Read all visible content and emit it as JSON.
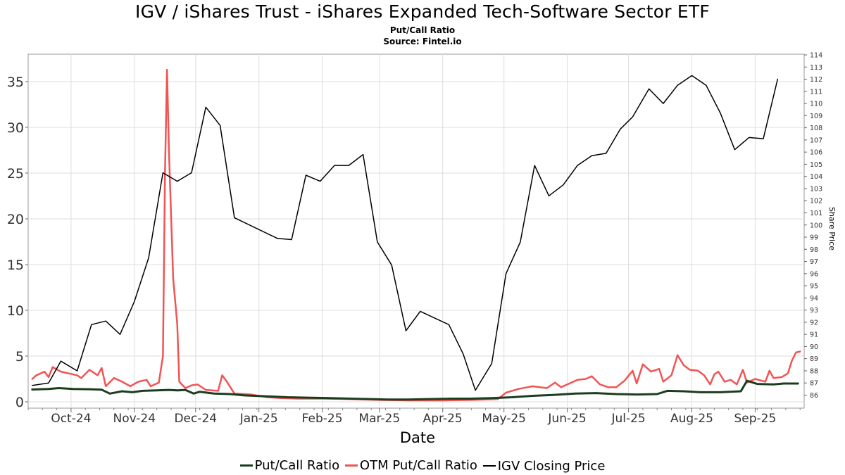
{
  "chart_data": {
    "type": "line",
    "title": "IGV / iShares Trust - iShares Expanded Tech-Software Sector ETF",
    "subtitle_lines": [
      "Put/Call Ratio",
      "Source: Fintel.io"
    ],
    "xlabel": "Date",
    "ylabel_left": "",
    "ylabel_right": "Share Price",
    "x_ticks": [
      "Oct-24",
      "Nov-24",
      "Dec-24",
      "Jan-25",
      "Feb-25",
      "Mar-25",
      "Apr-25",
      "May-25",
      "Jun-25",
      "Jul-25",
      "Aug-25",
      "Sep-25"
    ],
    "y_left_ticks": [
      "0",
      "5",
      "10",
      "15",
      "20",
      "25",
      "30",
      "35"
    ],
    "y_left_range": [
      0,
      38
    ],
    "y_right_ticks": [
      "86",
      "87",
      "88",
      "89",
      "90",
      "91",
      "92",
      "93",
      "94",
      "95",
      "96",
      "97",
      "98",
      "99",
      "100",
      "101",
      "102",
      "103",
      "104",
      "105",
      "106",
      "107",
      "108",
      "109",
      "110",
      "111",
      "112",
      "113",
      "114"
    ],
    "y_right_range": [
      85.4,
      114.1
    ],
    "x_range": [
      "2024-09-10",
      "2025-09-25"
    ],
    "grid": true,
    "legend_position": "bottom",
    "series": [
      {
        "name": "Put/Call Ratio",
        "axis": "left",
        "color": "#1b3d1f",
        "points": [
          [
            "2024-09-12",
            1.35
          ],
          [
            "2024-09-20",
            1.4
          ],
          [
            "2024-09-25",
            1.5
          ],
          [
            "2024-10-02",
            1.4
          ],
          [
            "2024-10-10",
            1.38
          ],
          [
            "2024-10-16",
            1.32
          ],
          [
            "2024-10-20",
            0.9
          ],
          [
            "2024-10-26",
            1.15
          ],
          [
            "2024-10-31",
            1.05
          ],
          [
            "2024-11-05",
            1.2
          ],
          [
            "2024-11-12",
            1.25
          ],
          [
            "2024-11-18",
            1.3
          ],
          [
            "2024-11-22",
            1.25
          ],
          [
            "2024-11-26",
            1.3
          ],
          [
            "2024-11-30",
            0.9
          ],
          [
            "2024-12-03",
            1.1
          ],
          [
            "2024-12-10",
            0.9
          ],
          [
            "2024-12-18",
            0.85
          ],
          [
            "2024-12-25",
            0.7
          ],
          [
            "2025-01-05",
            0.6
          ],
          [
            "2025-01-15",
            0.5
          ],
          [
            "2025-01-25",
            0.45
          ],
          [
            "2025-02-05",
            0.4
          ],
          [
            "2025-02-15",
            0.35
          ],
          [
            "2025-02-25",
            0.3
          ],
          [
            "2025-03-05",
            0.25
          ],
          [
            "2025-03-15",
            0.25
          ],
          [
            "2025-03-25",
            0.3
          ],
          [
            "2025-04-05",
            0.35
          ],
          [
            "2025-04-15",
            0.35
          ],
          [
            "2025-04-25",
            0.4
          ],
          [
            "2025-05-05",
            0.5
          ],
          [
            "2025-05-15",
            0.65
          ],
          [
            "2025-05-25",
            0.75
          ],
          [
            "2025-06-05",
            0.9
          ],
          [
            "2025-06-15",
            0.95
          ],
          [
            "2025-06-25",
            0.85
          ],
          [
            "2025-07-05",
            0.8
          ],
          [
            "2025-07-15",
            0.85
          ],
          [
            "2025-07-20",
            1.2
          ],
          [
            "2025-07-28",
            1.15
          ],
          [
            "2025-08-05",
            1.05
          ],
          [
            "2025-08-15",
            1.05
          ],
          [
            "2025-08-25",
            1.15
          ],
          [
            "2025-08-28",
            2.3
          ],
          [
            "2025-09-02",
            1.95
          ],
          [
            "2025-09-10",
            1.9
          ],
          [
            "2025-09-15",
            2.0
          ],
          [
            "2025-09-22",
            2.0
          ]
        ]
      },
      {
        "name": "OTM Put/Call Ratio",
        "axis": "left",
        "color": "#f25454",
        "points": [
          [
            "2024-09-12",
            2.5
          ],
          [
            "2024-09-14",
            2.9
          ],
          [
            "2024-09-18",
            3.3
          ],
          [
            "2024-09-20",
            2.7
          ],
          [
            "2024-09-22",
            3.8
          ],
          [
            "2024-09-26",
            3.3
          ],
          [
            "2024-09-30",
            3.1
          ],
          [
            "2024-10-04",
            2.9
          ],
          [
            "2024-10-06",
            2.6
          ],
          [
            "2024-10-10",
            3.5
          ],
          [
            "2024-10-14",
            2.9
          ],
          [
            "2024-10-16",
            3.7
          ],
          [
            "2024-10-18",
            1.7
          ],
          [
            "2024-10-22",
            2.6
          ],
          [
            "2024-10-26",
            2.2
          ],
          [
            "2024-10-30",
            1.7
          ],
          [
            "2024-11-03",
            2.2
          ],
          [
            "2024-11-07",
            2.4
          ],
          [
            "2024-11-09",
            1.7
          ],
          [
            "2024-11-13",
            2.1
          ],
          [
            "2024-11-15",
            5.0
          ],
          [
            "2024-11-16",
            25.0
          ],
          [
            "2024-11-17",
            36.3
          ],
          [
            "2024-11-18",
            27.0
          ],
          [
            "2024-11-20",
            13.5
          ],
          [
            "2024-11-22",
            8.5
          ],
          [
            "2024-11-23",
            2.2
          ],
          [
            "2024-11-26",
            1.5
          ],
          [
            "2024-11-29",
            1.8
          ],
          [
            "2024-12-02",
            1.9
          ],
          [
            "2024-12-06",
            1.3
          ],
          [
            "2024-12-12",
            1.2
          ],
          [
            "2024-12-14",
            2.9
          ],
          [
            "2024-12-16",
            2.3
          ],
          [
            "2024-12-20",
            0.9
          ],
          [
            "2024-12-28",
            0.8
          ],
          [
            "2025-01-05",
            0.5
          ],
          [
            "2025-01-12",
            0.4
          ],
          [
            "2025-01-20",
            0.35
          ],
          [
            "2025-02-01",
            0.35
          ],
          [
            "2025-02-15",
            0.3
          ],
          [
            "2025-03-01",
            0.2
          ],
          [
            "2025-03-15",
            0.15
          ],
          [
            "2025-04-01",
            0.15
          ],
          [
            "2025-04-15",
            0.2
          ],
          [
            "2025-04-28",
            0.3
          ],
          [
            "2025-05-02",
            1.0
          ],
          [
            "2025-05-08",
            1.4
          ],
          [
            "2025-05-15",
            1.7
          ],
          [
            "2025-05-22",
            1.5
          ],
          [
            "2025-05-26",
            2.1
          ],
          [
            "2025-05-29",
            1.6
          ],
          [
            "2025-06-02",
            2.0
          ],
          [
            "2025-06-06",
            2.4
          ],
          [
            "2025-06-10",
            2.5
          ],
          [
            "2025-06-13",
            2.8
          ],
          [
            "2025-06-17",
            1.9
          ],
          [
            "2025-06-21",
            1.6
          ],
          [
            "2025-06-25",
            1.6
          ],
          [
            "2025-06-29",
            2.3
          ],
          [
            "2025-07-03",
            3.4
          ],
          [
            "2025-07-05",
            2.0
          ],
          [
            "2025-07-08",
            4.1
          ],
          [
            "2025-07-12",
            3.3
          ],
          [
            "2025-07-16",
            3.6
          ],
          [
            "2025-07-18",
            2.2
          ],
          [
            "2025-07-22",
            2.9
          ],
          [
            "2025-07-25",
            5.1
          ],
          [
            "2025-07-28",
            4.0
          ],
          [
            "2025-07-31",
            3.5
          ],
          [
            "2025-08-04",
            3.4
          ],
          [
            "2025-08-07",
            2.9
          ],
          [
            "2025-08-10",
            1.9
          ],
          [
            "2025-08-12",
            3.0
          ],
          [
            "2025-08-14",
            3.3
          ],
          [
            "2025-08-17",
            2.2
          ],
          [
            "2025-08-20",
            2.4
          ],
          [
            "2025-08-23",
            1.9
          ],
          [
            "2025-08-26",
            3.5
          ],
          [
            "2025-08-28",
            2.1
          ],
          [
            "2025-09-01",
            2.5
          ],
          [
            "2025-09-06",
            2.2
          ],
          [
            "2025-09-08",
            3.4
          ],
          [
            "2025-09-10",
            2.6
          ],
          [
            "2025-09-14",
            2.7
          ],
          [
            "2025-09-17",
            3.1
          ],
          [
            "2025-09-19",
            4.5
          ],
          [
            "2025-09-21",
            5.4
          ],
          [
            "2025-09-23",
            5.5
          ]
        ]
      },
      {
        "name": "IGV Closing Price",
        "axis": "right",
        "color": "#000000",
        "points": [
          [
            "2024-09-12",
            86.8
          ],
          [
            "2024-09-20",
            87.0
          ],
          [
            "2024-09-26",
            88.8
          ],
          [
            "2024-10-04",
            88.0
          ],
          [
            "2024-10-11",
            91.8
          ],
          [
            "2024-10-18",
            92.1
          ],
          [
            "2024-10-25",
            91.0
          ],
          [
            "2024-11-01",
            93.7
          ],
          [
            "2024-11-08",
            97.3
          ],
          [
            "2024-11-15",
            104.3
          ],
          [
            "2024-11-22",
            103.6
          ],
          [
            "2024-11-29",
            104.3
          ],
          [
            "2024-12-06",
            109.7
          ],
          [
            "2024-12-13",
            108.2
          ],
          [
            "2024-12-20",
            100.6
          ],
          [
            "2025-01-10",
            98.9
          ],
          [
            "2025-01-17",
            98.8
          ],
          [
            "2025-01-24",
            104.1
          ],
          [
            "2025-01-31",
            103.6
          ],
          [
            "2025-02-07",
            104.9
          ],
          [
            "2025-02-14",
            104.9
          ],
          [
            "2025-02-21",
            105.8
          ],
          [
            "2025-02-28",
            98.6
          ],
          [
            "2025-03-07",
            96.7
          ],
          [
            "2025-03-14",
            91.3
          ],
          [
            "2025-03-21",
            92.9
          ],
          [
            "2025-04-04",
            91.8
          ],
          [
            "2025-04-11",
            89.4
          ],
          [
            "2025-04-17",
            86.4
          ],
          [
            "2025-04-25",
            88.6
          ],
          [
            "2025-05-02",
            96.0
          ],
          [
            "2025-05-09",
            98.6
          ],
          [
            "2025-05-16",
            104.9
          ],
          [
            "2025-05-23",
            102.4
          ],
          [
            "2025-05-30",
            103.3
          ],
          [
            "2025-06-06",
            104.9
          ],
          [
            "2025-06-13",
            105.7
          ],
          [
            "2025-06-20",
            105.9
          ],
          [
            "2025-06-27",
            107.9
          ],
          [
            "2025-07-03",
            108.9
          ],
          [
            "2025-07-11",
            111.2
          ],
          [
            "2025-07-18",
            110.0
          ],
          [
            "2025-07-25",
            111.5
          ],
          [
            "2025-08-01",
            112.3
          ],
          [
            "2025-08-08",
            111.5
          ],
          [
            "2025-08-15",
            109.2
          ],
          [
            "2025-08-22",
            106.2
          ],
          [
            "2025-08-29",
            107.2
          ],
          [
            "2025-09-05",
            107.1
          ],
          [
            "2025-09-12",
            112.0
          ]
        ]
      }
    ]
  }
}
